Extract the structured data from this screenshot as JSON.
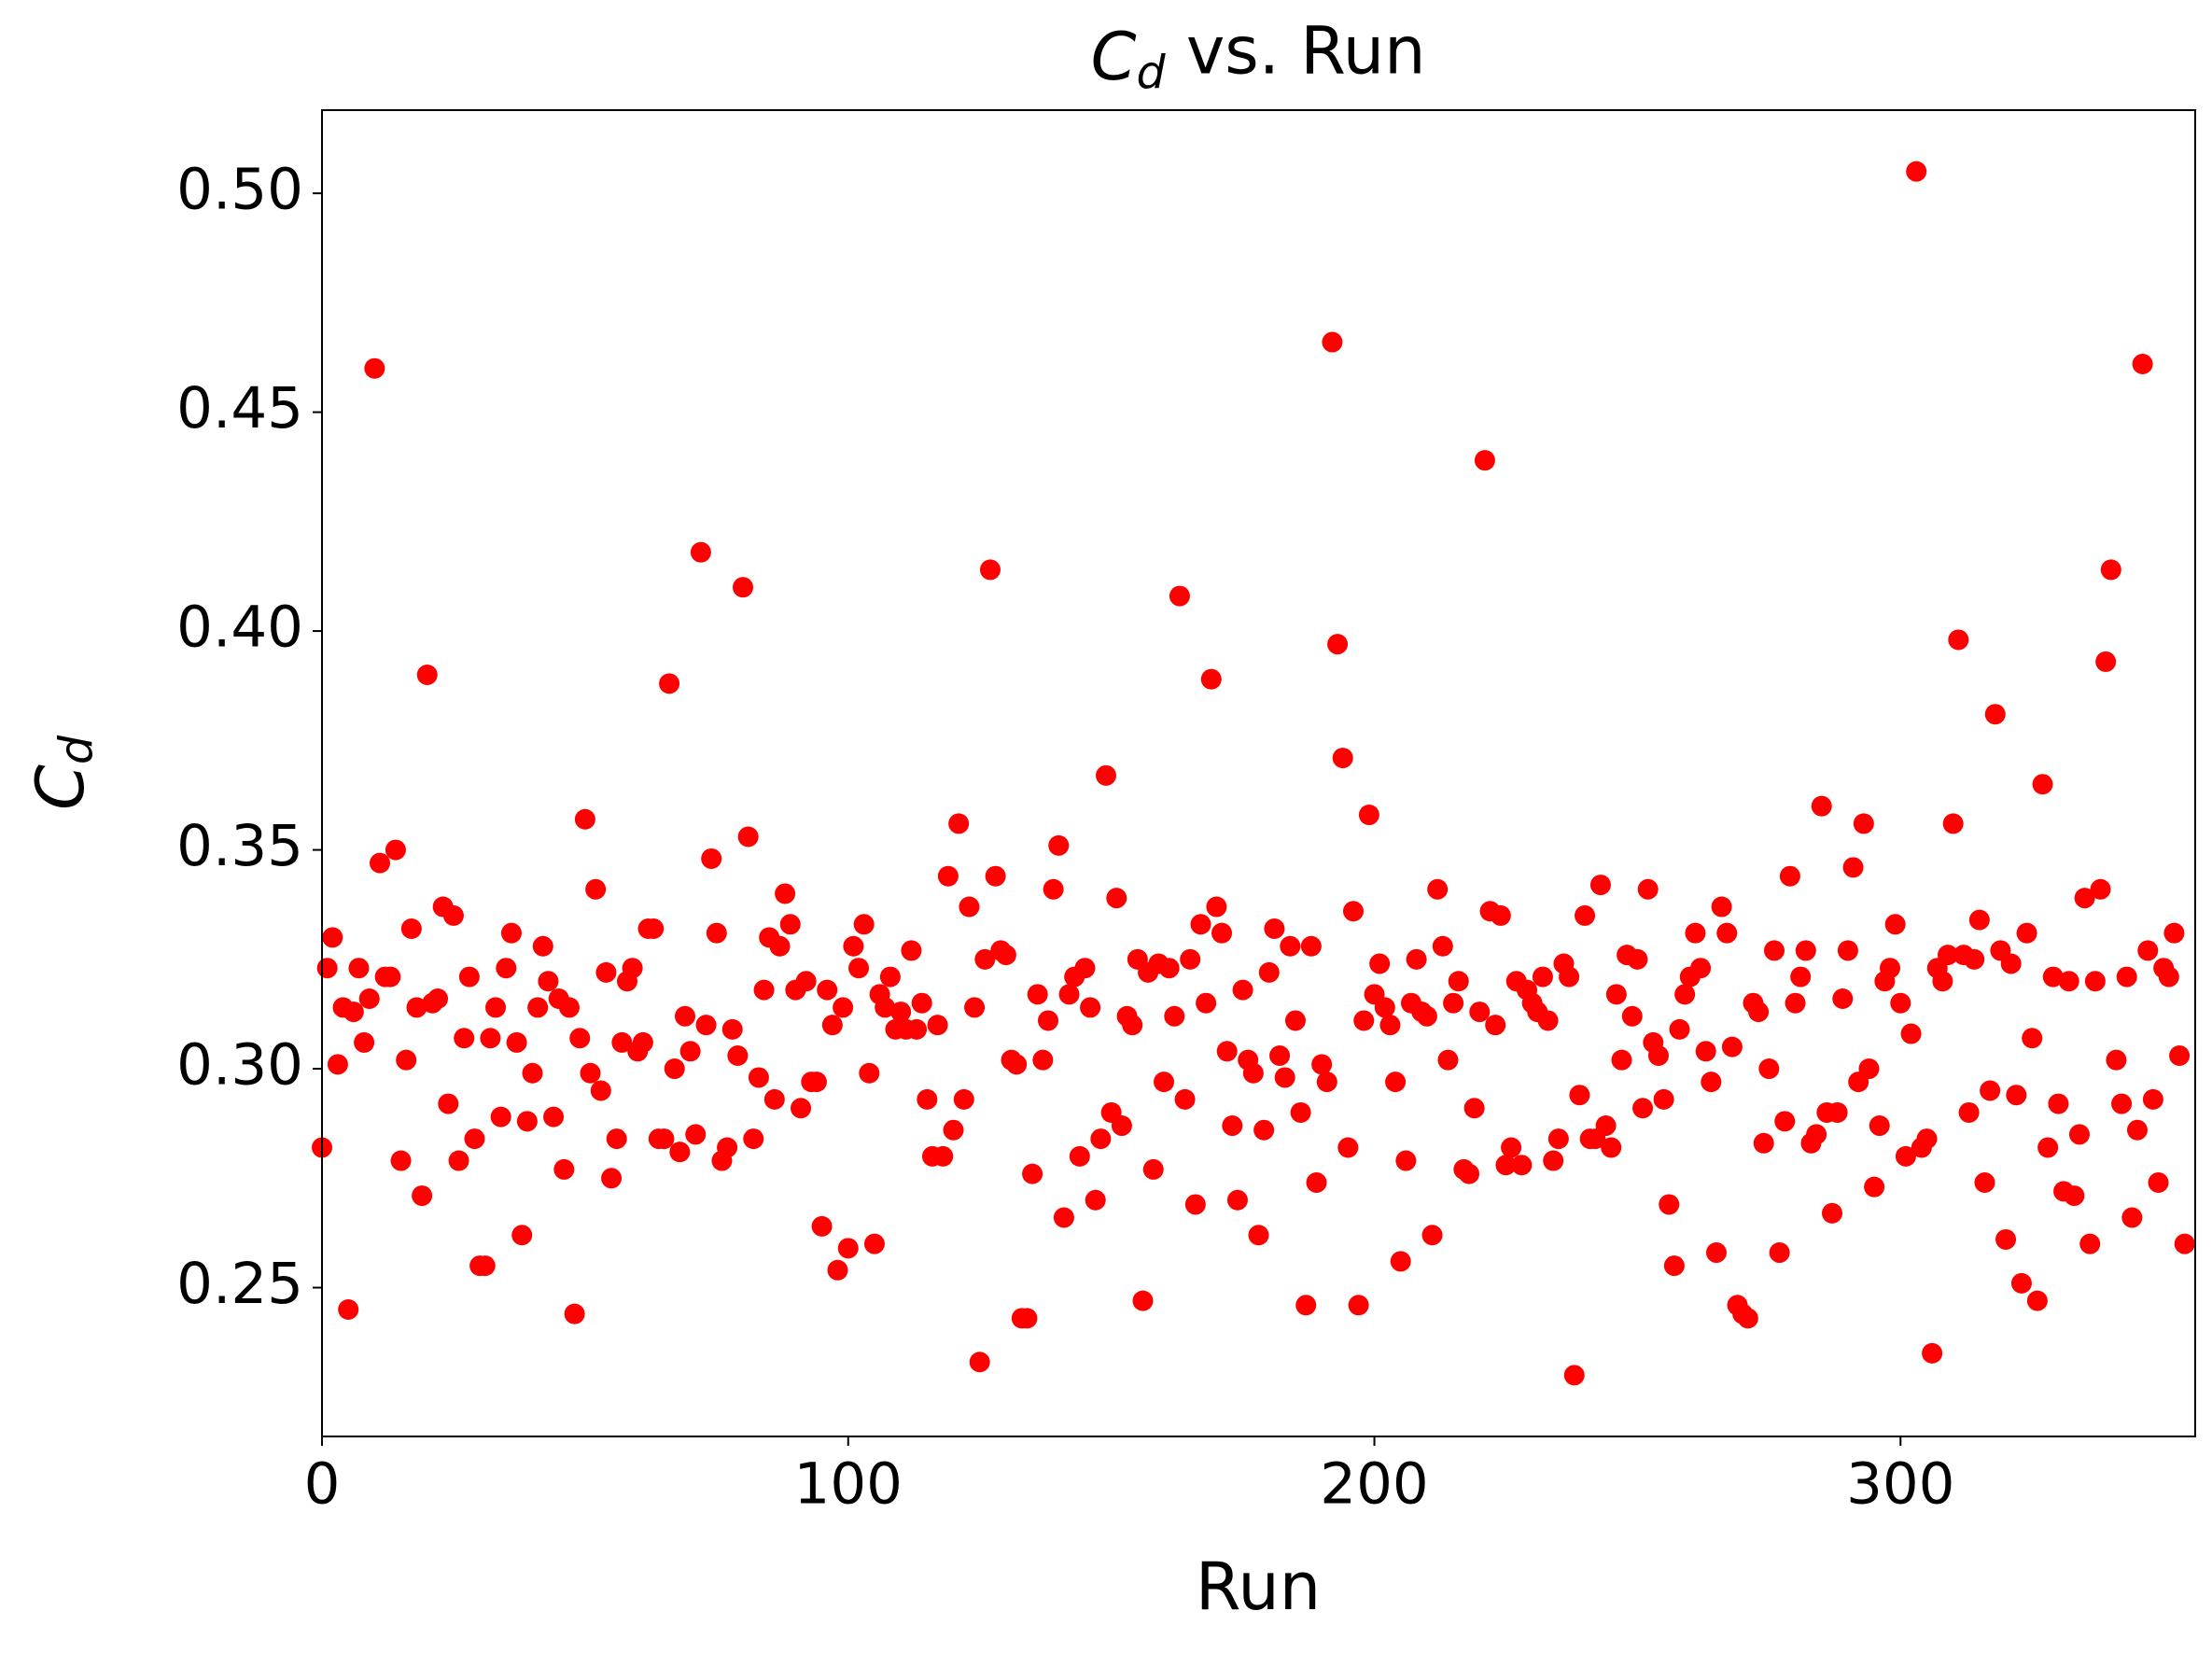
{
  "chart_data": {
    "type": "scatter",
    "title": "Cd vs. Run",
    "x_label": "Run",
    "y_label": "Cd",
    "color": "#ff0000",
    "xlim": [
      0,
      356
    ],
    "ylim": [
      0.216,
      0.519
    ],
    "xticks": [
      0,
      100,
      200,
      300
    ],
    "yticks": [
      0.25,
      {
        "value": 0.3,
        "label": "0.30"
      },
      0.35,
      {
        "value": 0.4,
        "label": "0.40"
      },
      0.45,
      {
        "value": 0.5,
        "label": "0.50"
      }
    ],
    "x": [
      0,
      1,
      2,
      3,
      4,
      5,
      6,
      7,
      8,
      9,
      10,
      11,
      12,
      13,
      14,
      15,
      16,
      17,
      18,
      19,
      20,
      21,
      22,
      23,
      24,
      25,
      26,
      27,
      28,
      29,
      30,
      31,
      32,
      33,
      34,
      35,
      36,
      37,
      38,
      39,
      40,
      41,
      42,
      43,
      44,
      45,
      46,
      47,
      48,
      49,
      50,
      51,
      52,
      53,
      54,
      55,
      56,
      57,
      58,
      59,
      60,
      61,
      62,
      63,
      64,
      65,
      66,
      67,
      68,
      69,
      70,
      71,
      72,
      73,
      74,
      75,
      76,
      77,
      78,
      79,
      80,
      81,
      82,
      83,
      84,
      85,
      86,
      87,
      88,
      89,
      90,
      91,
      92,
      93,
      94,
      95,
      96,
      97,
      98,
      99,
      100,
      101,
      102,
      103,
      104,
      105,
      106,
      107,
      108,
      109,
      110,
      111,
      112,
      113,
      114,
      115,
      116,
      117,
      118,
      119,
      120,
      121,
      122,
      123,
      124,
      125,
      126,
      127,
      128,
      129,
      130,
      131,
      132,
      133,
      134,
      135,
      136,
      137,
      138,
      139,
      140,
      141,
      142,
      143,
      144,
      145,
      146,
      147,
      148,
      149,
      150,
      151,
      152,
      153,
      154,
      155,
      156,
      157,
      158,
      159,
      160,
      161,
      162,
      163,
      164,
      165,
      166,
      167,
      168,
      169,
      170,
      171,
      172,
      173,
      174,
      175,
      176,
      177,
      178,
      179,
      180,
      181,
      182,
      183,
      184,
      185,
      186,
      187,
      188,
      189,
      190,
      191,
      192,
      193,
      194,
      195,
      196,
      197,
      198,
      199,
      200,
      201,
      202,
      203,
      204,
      205,
      206,
      207,
      208,
      209,
      210,
      211,
      212,
      213,
      214,
      215,
      216,
      217,
      218,
      219,
      220,
      221,
      222,
      223,
      224,
      225,
      226,
      227,
      228,
      229,
      230,
      231,
      232,
      233,
      234,
      235,
      236,
      237,
      238,
      239,
      240,
      241,
      242,
      243,
      244,
      245,
      246,
      247,
      248,
      249,
      250,
      251,
      252,
      253,
      254,
      255,
      256,
      257,
      258,
      259,
      260,
      261,
      262,
      263,
      264,
      265,
      266,
      267,
      268,
      269,
      270,
      271,
      272,
      273,
      274,
      275,
      276,
      277,
      278,
      279,
      280,
      281,
      282,
      283,
      284,
      285,
      286,
      287,
      288,
      289,
      290,
      291,
      292,
      293,
      294,
      295,
      296,
      297,
      298,
      299,
      300,
      301,
      302,
      303,
      304,
      305,
      306,
      307,
      308,
      309,
      310,
      311,
      312,
      313,
      314,
      315,
      316,
      317,
      318,
      319,
      320,
      321,
      322,
      323,
      324,
      325,
      326,
      327,
      328,
      329,
      330,
      331,
      332,
      333,
      334,
      335,
      336,
      337,
      338,
      339,
      340,
      341,
      342,
      343,
      344,
      345,
      346,
      347,
      348,
      349,
      350,
      351,
      352,
      353,
      354
    ],
    "values": [
      0.282,
      0.323,
      0.33,
      0.301,
      0.314,
      0.245,
      0.313,
      0.323,
      0.306,
      0.316,
      0.46,
      0.347,
      0.321,
      0.321,
      0.35,
      0.279,
      0.302,
      0.332,
      0.314,
      0.271,
      0.39,
      0.315,
      0.316,
      0.337,
      0.292,
      0.335,
      0.279,
      0.307,
      0.321,
      0.284,
      0.255,
      0.255,
      0.307,
      0.314,
      0.289,
      0.323,
      0.331,
      0.306,
      0.262,
      0.288,
      0.299,
      0.314,
      0.328,
      0.32,
      0.289,
      0.316,
      0.277,
      0.314,
      0.244,
      0.307,
      0.357,
      0.299,
      0.341,
      0.295,
      0.322,
      0.275,
      0.284,
      0.306,
      0.32,
      0.323,
      0.304,
      0.306,
      0.332,
      0.332,
      0.284,
      0.284,
      0.388,
      0.3,
      0.281,
      0.312,
      0.304,
      0.285,
      0.418,
      0.31,
      0.348,
      0.331,
      0.279,
      0.282,
      0.309,
      0.303,
      0.41,
      0.353,
      0.284,
      0.298,
      0.318,
      0.33,
      0.293,
      0.328,
      0.34,
      0.333,
      0.318,
      0.291,
      0.32,
      0.297,
      0.297,
      0.264,
      0.318,
      0.31,
      0.254,
      0.314,
      0.259,
      0.328,
      0.323,
      0.333,
      0.299,
      0.26,
      0.317,
      0.314,
      0.321,
      0.309,
      0.313,
      0.309,
      0.327,
      0.309,
      0.315,
      0.293,
      0.28,
      0.31,
      0.28,
      0.344,
      0.286,
      0.356,
      0.293,
      0.337,
      0.314,
      0.233,
      0.325,
      0.414,
      0.344,
      0.327,
      0.326,
      0.302,
      0.301,
      0.243,
      0.243,
      0.276,
      0.317,
      0.302,
      0.311,
      0.341,
      0.351,
      0.266,
      0.317,
      0.321,
      0.28,
      0.323,
      0.314,
      0.27,
      0.284,
      0.367,
      0.29,
      0.339,
      0.287,
      0.312,
      0.31,
      0.325,
      0.247,
      0.322,
      0.277,
      0.324,
      0.297,
      0.323,
      0.312,
      0.408,
      0.293,
      0.325,
      0.269,
      0.333,
      0.315,
      0.389,
      0.337,
      0.331,
      0.304,
      0.287,
      0.27,
      0.318,
      0.302,
      0.299,
      0.262,
      0.286,
      0.322,
      0.332,
      0.303,
      0.298,
      0.328,
      0.311,
      0.29,
      0.246,
      0.328,
      0.274,
      0.301,
      0.297,
      0.466,
      0.397,
      0.371,
      0.282,
      0.336,
      0.246,
      0.311,
      0.358,
      0.317,
      0.324,
      0.314,
      0.31,
      0.297,
      0.256,
      0.279,
      0.315,
      0.325,
      0.313,
      0.312,
      0.262,
      0.341,
      0.328,
      0.302,
      0.315,
      0.32,
      0.277,
      0.276,
      0.291,
      0.313,
      0.439,
      0.336,
      0.31,
      0.335,
      0.278,
      0.282,
      0.32,
      0.278,
      0.318,
      0.315,
      0.313,
      0.321,
      0.311,
      0.279,
      0.284,
      0.324,
      0.321,
      0.23,
      0.294,
      0.335,
      0.284,
      0.284,
      0.342,
      0.287,
      0.282,
      0.317,
      0.302,
      0.326,
      0.312,
      0.325,
      0.291,
      0.341,
      0.306,
      0.303,
      0.293,
      0.269,
      0.255,
      0.309,
      0.317,
      0.321,
      0.331,
      0.323,
      0.304,
      0.297,
      0.258,
      0.337,
      0.331,
      0.305,
      0.246,
      0.244,
      0.243,
      0.315,
      0.313,
      0.283,
      0.3,
      0.327,
      0.258,
      0.288,
      0.344,
      0.315,
      0.321,
      0.327,
      0.283,
      0.285,
      0.36,
      0.29,
      0.267,
      0.29,
      0.316,
      0.327,
      0.346,
      0.297,
      0.356,
      0.3,
      0.273,
      0.287,
      0.32,
      0.323,
      0.333,
      0.315,
      0.28,
      0.308,
      0.505,
      0.282,
      0.284,
      0.235,
      0.323,
      0.32,
      0.326,
      0.356,
      0.398,
      0.326,
      0.29,
      0.325,
      0.334,
      0.274,
      0.295,
      0.381,
      0.327,
      0.261,
      0.324,
      0.294,
      0.251,
      0.331,
      0.307,
      0.247,
      0.365,
      0.282,
      0.321,
      0.292,
      0.272,
      0.32,
      0.271,
      0.285,
      0.339,
      0.26,
      0.32,
      0.341,
      0.393,
      0.414,
      0.302,
      0.292,
      0.321,
      0.266,
      0.286,
      0.461,
      0.327,
      0.293,
      0.274,
      0.323,
      0.321,
      0.331,
      0.303,
      0.26
    ]
  }
}
